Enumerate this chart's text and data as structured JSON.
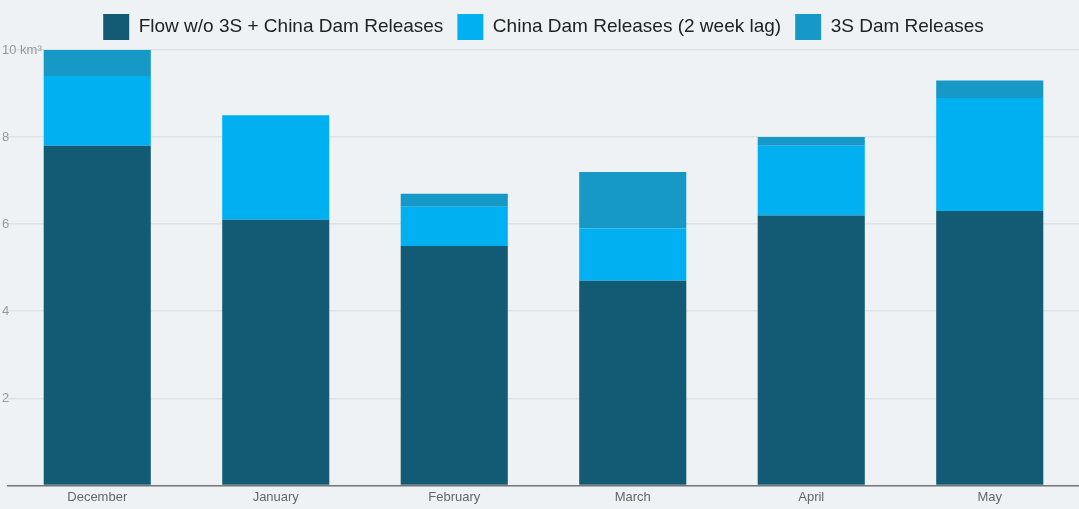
{
  "chart_data": {
    "type": "bar",
    "stacked": true,
    "categories": [
      "December",
      "January",
      "February",
      "March",
      "April",
      "May"
    ],
    "series": [
      {
        "name": "Flow w/o 3S + China Dam Releases",
        "color": "#135b75",
        "values": [
          7.8,
          6.1,
          5.5,
          4.7,
          6.2,
          6.3
        ]
      },
      {
        "name": "China Dam Releases (2 week lag)",
        "color": "#00b0f0",
        "values": [
          1.6,
          2.4,
          0.9,
          1.2,
          1.6,
          2.6
        ]
      },
      {
        "name": "3S Dam Releases",
        "color": "#1699c6",
        "values": [
          0.6,
          0,
          0.3,
          1.3,
          0.2,
          0.4
        ]
      }
    ],
    "ylim": [
      0,
      10
    ],
    "yticks": [
      {
        "value": 0,
        "label": null
      },
      2,
      4,
      6,
      8,
      {
        "value": 10,
        "label": "10 km³"
      }
    ],
    "grid": "y",
    "legend": "top"
  }
}
